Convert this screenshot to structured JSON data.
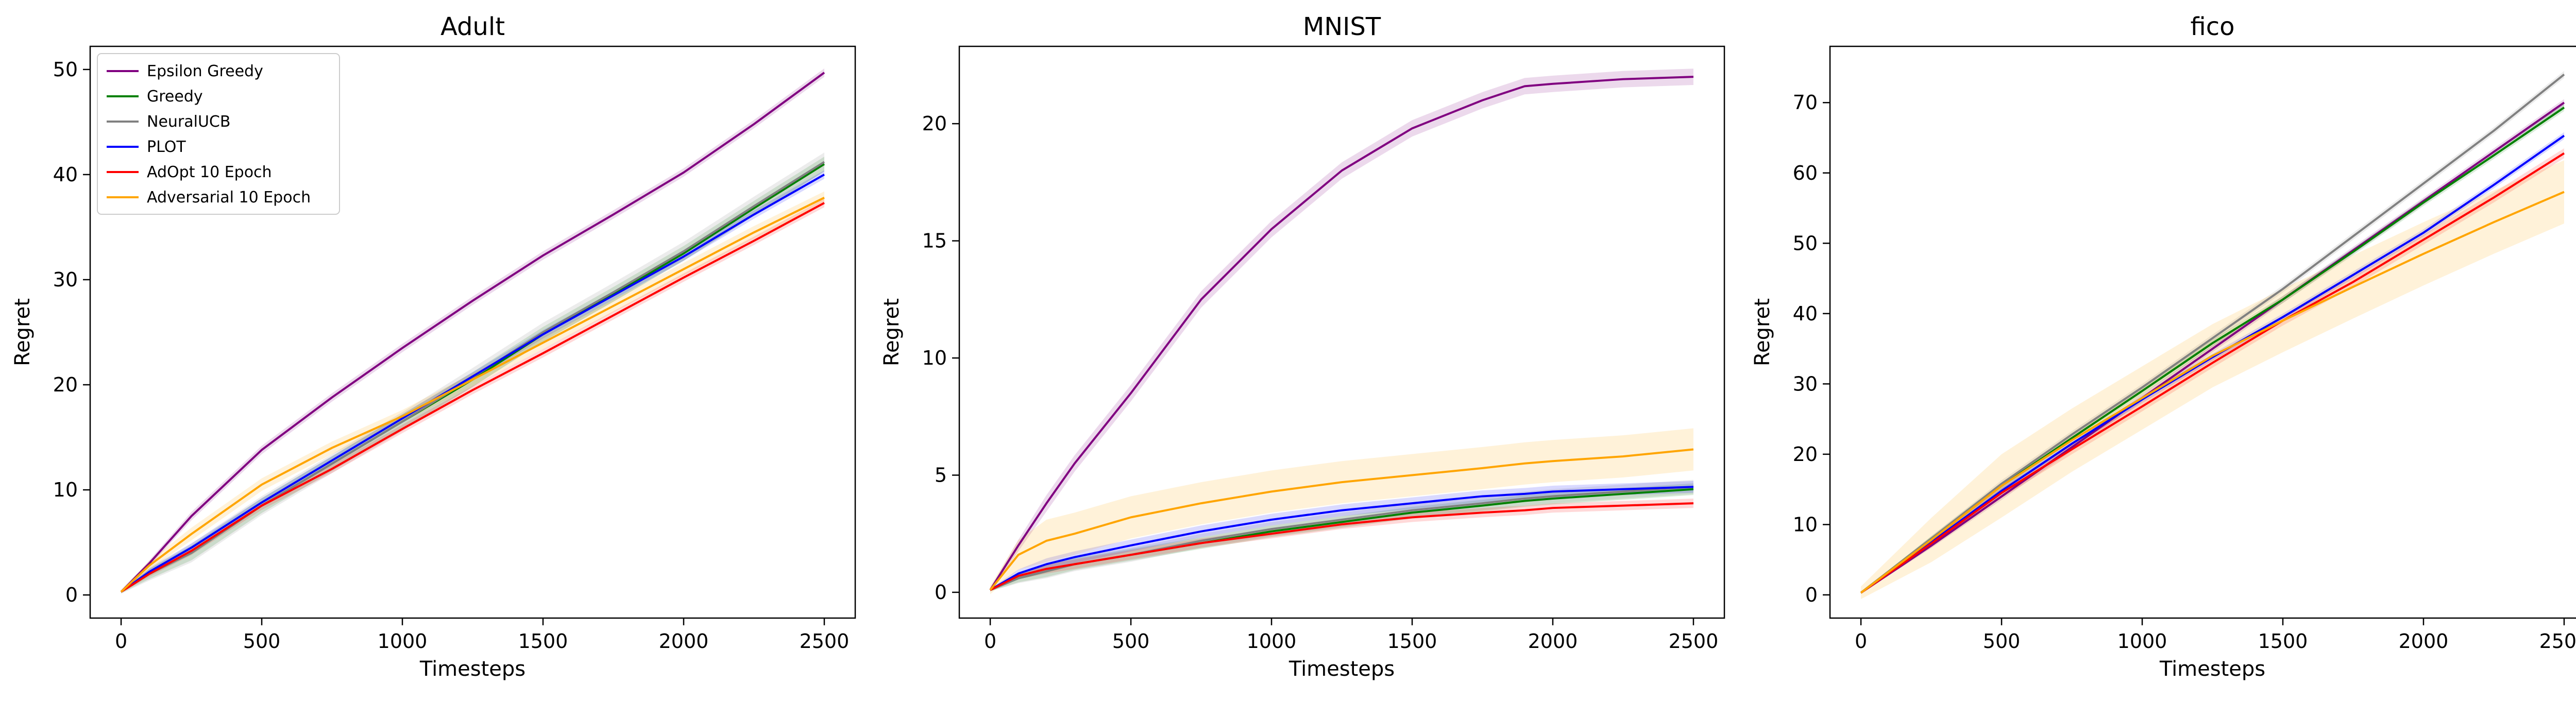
{
  "figure": {
    "colors": {
      "Epsilon Greedy": "#800080",
      "Greedy": "#008000",
      "NeuralUCB": "#808080",
      "PLOT": "#0000ff",
      "AdOpt 10 Epoch": "#ff0000",
      "Adversarial 10 Epoch": "#ffa500"
    },
    "legend": {
      "placement": "top-left of first panel",
      "entries": [
        "Epsilon Greedy",
        "Greedy",
        "NeuralUCB",
        "PLOT",
        "AdOpt 10 Epoch",
        "Adversarial 10 Epoch"
      ]
    }
  },
  "chart_data": [
    {
      "type": "line",
      "title": "Adult",
      "xlabel": "Timesteps",
      "ylabel": "Regret",
      "xlim": [
        -110,
        2610
      ],
      "ylim": [
        -2.2,
        52.2
      ],
      "xticks": [
        0,
        500,
        1000,
        1500,
        2000,
        2500
      ],
      "yticks": [
        0,
        10,
        20,
        30,
        40,
        50
      ],
      "grid": false,
      "legend": "upper left",
      "x": [
        0,
        100,
        250,
        500,
        750,
        1000,
        1250,
        1500,
        1750,
        2000,
        2250,
        2500
      ],
      "series": [
        {
          "name": "Epsilon Greedy",
          "values": [
            0.3,
            3.0,
            7.5,
            13.8,
            18.8,
            23.5,
            28.0,
            32.3,
            36.2,
            40.2,
            44.8,
            49.7
          ],
          "band": 0.4
        },
        {
          "name": "Greedy",
          "values": [
            0.3,
            2.0,
            4.0,
            8.5,
            12.5,
            16.5,
            20.5,
            24.8,
            28.6,
            32.5,
            36.8,
            41.0
          ],
          "band": 0.7
        },
        {
          "name": "NeuralUCB",
          "values": [
            0.3,
            2.0,
            4.0,
            8.5,
            12.5,
            16.5,
            20.7,
            25.0,
            28.8,
            32.7,
            37.0,
            41.2
          ],
          "band": 0.9
        },
        {
          "name": "PLOT",
          "values": [
            0.3,
            2.2,
            4.5,
            8.8,
            12.8,
            16.8,
            20.8,
            24.8,
            28.5,
            32.2,
            36.2,
            40.0
          ],
          "band": 0.4
        },
        {
          "name": "AdOpt 10 Epoch",
          "values": [
            0.3,
            2.0,
            4.2,
            8.5,
            12.0,
            15.8,
            19.5,
            23.0,
            26.6,
            30.2,
            33.7,
            37.3
          ],
          "band": 0.4
        },
        {
          "name": "Adversarial 10 Epoch",
          "values": [
            0.3,
            2.8,
            5.8,
            10.5,
            14.0,
            17.0,
            20.5,
            24.0,
            27.5,
            31.0,
            34.5,
            37.8
          ],
          "band": 0.6
        }
      ]
    },
    {
      "type": "line",
      "title": "MNIST",
      "xlabel": "Timesteps",
      "ylabel": "Regret",
      "xlim": [
        -110,
        2610
      ],
      "ylim": [
        -1.1,
        23.3
      ],
      "xticks": [
        0,
        500,
        1000,
        1500,
        2000,
        2500
      ],
      "yticks": [
        0,
        5,
        10,
        15,
        20
      ],
      "grid": false,
      "x": [
        0,
        100,
        200,
        300,
        500,
        750,
        1000,
        1250,
        1500,
        1750,
        1900,
        2000,
        2250,
        2500
      ],
      "series": [
        {
          "name": "Epsilon Greedy",
          "values": [
            0.1,
            2.0,
            3.8,
            5.5,
            8.5,
            12.5,
            15.5,
            18.0,
            19.8,
            21.0,
            21.6,
            21.7,
            21.9,
            22.0
          ],
          "band": 0.35
        },
        {
          "name": "Greedy",
          "values": [
            0.1,
            0.6,
            0.9,
            1.2,
            1.6,
            2.1,
            2.6,
            3.0,
            3.4,
            3.7,
            3.9,
            4.0,
            4.2,
            4.4
          ],
          "band": 0.25
        },
        {
          "name": "NeuralUCB",
          "values": [
            0.1,
            0.6,
            0.9,
            1.2,
            1.6,
            2.2,
            2.7,
            3.1,
            3.5,
            3.8,
            4.0,
            4.1,
            4.3,
            4.5
          ],
          "band": 0.3
        },
        {
          "name": "PLOT",
          "values": [
            0.1,
            0.8,
            1.2,
            1.5,
            2.0,
            2.6,
            3.1,
            3.5,
            3.8,
            4.1,
            4.2,
            4.3,
            4.4,
            4.5
          ],
          "band": 0.25
        },
        {
          "name": "AdOpt 10 Epoch",
          "values": [
            0.1,
            0.7,
            1.0,
            1.2,
            1.6,
            2.1,
            2.5,
            2.9,
            3.2,
            3.4,
            3.5,
            3.6,
            3.7,
            3.8
          ],
          "band": 0.2
        },
        {
          "name": "Adversarial 10 Epoch",
          "values": [
            0.1,
            1.6,
            2.2,
            2.5,
            3.2,
            3.8,
            4.3,
            4.7,
            5.0,
            5.3,
            5.5,
            5.6,
            5.8,
            6.1
          ],
          "band": 0.9
        }
      ]
    },
    {
      "type": "line",
      "title": "fico",
      "xlabel": "Timesteps",
      "ylabel": "Regret",
      "xlim": [
        -110,
        2610
      ],
      "ylim": [
        -3.3,
        78.0
      ],
      "xticks": [
        0,
        500,
        1000,
        1500,
        2000,
        2500
      ],
      "yticks": [
        0,
        10,
        20,
        30,
        40,
        50,
        60,
        70
      ],
      "grid": false,
      "x": [
        0,
        250,
        500,
        750,
        1000,
        1250,
        1500,
        1750,
        2000,
        2250,
        2500
      ],
      "series": [
        {
          "name": "Epsilon Greedy",
          "values": [
            0.3,
            7.0,
            14.0,
            21.0,
            28.0,
            35.0,
            42.0,
            49.0,
            56.0,
            63.0,
            70.0
          ],
          "band": 0.5
        },
        {
          "name": "Greedy",
          "values": [
            0.3,
            8.0,
            15.5,
            22.3,
            29.0,
            35.8,
            42.0,
            48.8,
            55.8,
            62.5,
            69.3
          ],
          "band": 0.5
        },
        {
          "name": "NeuralUCB",
          "values": [
            0.3,
            8.0,
            15.8,
            22.8,
            29.5,
            36.5,
            43.5,
            51.0,
            58.5,
            66.0,
            74.0
          ],
          "band": 0.5
        },
        {
          "name": "PLOT",
          "values": [
            0.3,
            7.5,
            14.8,
            21.5,
            27.8,
            33.8,
            39.5,
            45.5,
            51.5,
            58.3,
            65.3
          ],
          "band": 0.5
        },
        {
          "name": "AdOpt 10 Epoch",
          "values": [
            0.3,
            7.3,
            14.5,
            20.7,
            26.8,
            33.0,
            39.0,
            44.5,
            50.5,
            56.5,
            62.8
          ],
          "band": 0.7
        },
        {
          "name": "Adversarial 10 Epoch",
          "values": [
            0.3,
            7.8,
            15.5,
            22.0,
            28.0,
            34.0,
            39.0,
            43.8,
            48.5,
            53.0,
            57.3
          ],
          "band": 4.5
        }
      ]
    }
  ]
}
